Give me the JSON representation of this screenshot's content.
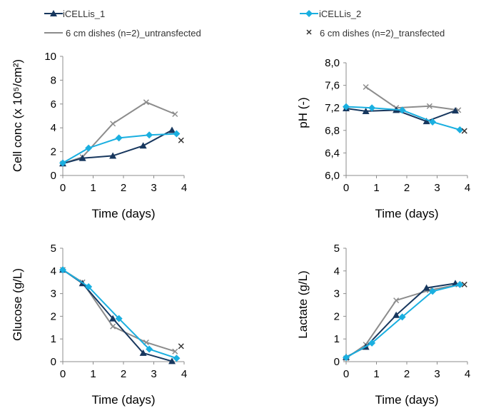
{
  "legend": {
    "items": [
      {
        "name": "iCELLis_1",
        "color": "#17375e",
        "marker": "triangle"
      },
      {
        "name": "iCELLis_2",
        "color": "#1aafe0",
        "marker": "diamond"
      },
      {
        "name": "6 cm dishes (n=2)_untransfected",
        "color": "#8c8c8c",
        "marker": "none"
      },
      {
        "name": "6 cm dishes (n=2)_transfected",
        "color": "#333333",
        "marker": "x"
      }
    ]
  },
  "chart_data": [
    {
      "type": "line",
      "title": "",
      "xlabel": "Time (days)",
      "ylabel": "Cell conc (x 10⁵/cm²)",
      "xlim": [
        0,
        4
      ],
      "ylim": [
        0,
        10
      ],
      "xticks": [
        0,
        1,
        2,
        3,
        4
      ],
      "yticks": [
        0,
        2,
        4,
        6,
        8,
        10
      ],
      "ytick_labels": [
        "0",
        "2",
        "4",
        "6",
        "8",
        "10"
      ],
      "series": [
        {
          "name": "iCELLis_1",
          "x": [
            0,
            0.65,
            1.65,
            2.65,
            3.6
          ],
          "y": [
            1.0,
            1.45,
            1.65,
            2.5,
            3.8
          ]
        },
        {
          "name": "iCELLis_2",
          "x": [
            0,
            0.85,
            1.85,
            2.85,
            3.75
          ],
          "y": [
            1.05,
            2.3,
            3.15,
            3.4,
            3.5
          ]
        },
        {
          "name": "6 cm dishes (n=2)_untransfected",
          "x": [
            0,
            0.65,
            1.65,
            2.75,
            3.7
          ],
          "y": [
            1.0,
            1.55,
            4.35,
            6.15,
            5.15
          ]
        },
        {
          "name": "6 cm dishes (n=2)_transfected",
          "x": [
            3.9
          ],
          "y": [
            2.95
          ]
        }
      ]
    },
    {
      "type": "line",
      "title": "",
      "xlabel": "Time (days)",
      "ylabel": "pH (-)",
      "xlim": [
        0,
        4
      ],
      "ylim": [
        6.0,
        8.0
      ],
      "xticks": [
        0,
        1,
        2,
        3,
        4
      ],
      "yticks": [
        6.0,
        6.4,
        6.8,
        7.2,
        7.6,
        8.0
      ],
      "ytick_labels": [
        "6,0",
        "6,4",
        "6,8",
        "7,2",
        "7,6",
        "8,0"
      ],
      "series": [
        {
          "name": "iCELLis_1",
          "x": [
            0,
            0.65,
            1.65,
            2.65,
            3.6
          ],
          "y": [
            7.19,
            7.14,
            7.16,
            6.96,
            7.15
          ]
        },
        {
          "name": "iCELLis_2",
          "x": [
            0,
            0.85,
            1.85,
            2.85,
            3.75
          ],
          "y": [
            7.22,
            7.2,
            7.16,
            6.95,
            6.81
          ]
        },
        {
          "name": "6 cm dishes (n=2)_untransfected",
          "x": [
            0.65,
            1.65,
            2.75,
            3.7
          ],
          "y": [
            7.57,
            7.2,
            7.23,
            7.16
          ]
        },
        {
          "name": "6 cm dishes (n=2)_transfected",
          "x": [
            3.9
          ],
          "y": [
            6.79
          ]
        }
      ]
    },
    {
      "type": "line",
      "title": "",
      "xlabel": "Time (days)",
      "ylabel": "Glucose (g/L)",
      "xlim": [
        0,
        4
      ],
      "ylim": [
        0,
        5
      ],
      "xticks": [
        0,
        1,
        2,
        3,
        4
      ],
      "yticks": [
        0,
        1,
        2,
        3,
        4,
        5
      ],
      "ytick_labels": [
        "0",
        "1",
        "2",
        "3",
        "4",
        "5"
      ],
      "series": [
        {
          "name": "iCELLis_1",
          "x": [
            0,
            0.65,
            1.65,
            2.65,
            3.6
          ],
          "y": [
            4.05,
            3.45,
            1.9,
            0.38,
            0.02
          ]
        },
        {
          "name": "iCELLis_2",
          "x": [
            0,
            0.85,
            1.85,
            2.85,
            3.75
          ],
          "y": [
            4.05,
            3.3,
            1.9,
            0.55,
            0.15
          ]
        },
        {
          "name": "6 cm dishes (n=2)_untransfected",
          "x": [
            0,
            0.65,
            1.65,
            2.75,
            3.7
          ],
          "y": [
            4.05,
            3.5,
            1.55,
            0.85,
            0.45
          ]
        },
        {
          "name": "6 cm dishes (n=2)_transfected",
          "x": [
            3.9
          ],
          "y": [
            0.68
          ]
        }
      ]
    },
    {
      "type": "line",
      "title": "",
      "xlabel": "Time (days)",
      "ylabel": "Lactate (g/L)",
      "xlim": [
        0,
        4
      ],
      "ylim": [
        0,
        5
      ],
      "xticks": [
        0,
        1,
        2,
        3,
        4
      ],
      "yticks": [
        0,
        1,
        2,
        3,
        4,
        5
      ],
      "ytick_labels": [
        "0",
        "1",
        "2",
        "3",
        "4",
        "5"
      ],
      "series": [
        {
          "name": "iCELLis_1",
          "x": [
            0,
            0.65,
            1.65,
            2.65,
            3.6
          ],
          "y": [
            0.2,
            0.65,
            2.05,
            3.25,
            3.45
          ]
        },
        {
          "name": "iCELLis_2",
          "x": [
            0,
            0.85,
            1.85,
            2.85,
            3.75
          ],
          "y": [
            0.18,
            0.82,
            1.97,
            3.1,
            3.4
          ]
        },
        {
          "name": "6 cm dishes (n=2)_untransfected",
          "x": [
            0,
            0.65,
            1.65,
            2.75,
            3.7
          ],
          "y": [
            0.15,
            0.75,
            2.7,
            3.15,
            3.4
          ]
        },
        {
          "name": "6 cm dishes (n=2)_transfected",
          "x": [
            3.9
          ],
          "y": [
            3.4
          ]
        }
      ]
    }
  ]
}
